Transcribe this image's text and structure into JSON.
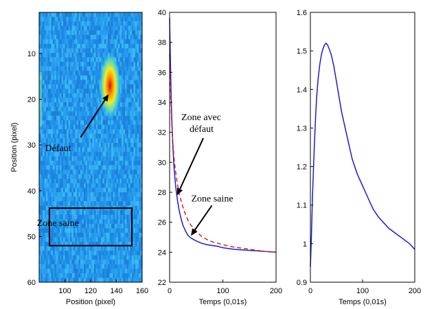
{
  "chart_data": [
    {
      "type": "heatmap",
      "xlabel": "Position  (pixel)",
      "ylabel": "Position  (pixel)",
      "xlim": [
        80,
        160
      ],
      "ylim": [
        60,
        1
      ],
      "x_ticks": [
        "100",
        "120",
        "140",
        "160"
      ],
      "y_ticks": [
        "10",
        "20",
        "30",
        "40",
        "50",
        "60"
      ],
      "colormap": "jet",
      "background_color": "#1f8fe6",
      "hotspot": {
        "x": 135,
        "y": 17
      },
      "annotations": [
        {
          "text": "Défaut",
          "at": {
            "x": 108,
            "y": 31
          },
          "arrow_to": {
            "x": 134,
            "y": 18
          }
        },
        {
          "text": "Zone saine",
          "at": {
            "x": 90,
            "y": 48
          }
        }
      ],
      "box": {
        "x": [
          88,
          152
        ],
        "y": [
          45,
          52
        ]
      }
    },
    {
      "type": "line",
      "xlabel": "Temps  (0,01s)",
      "ylabel": "",
      "xlim": [
        0,
        200
      ],
      "ylim": [
        22,
        40
      ],
      "x_ticks": [
        "0",
        "100",
        "200"
      ],
      "y_ticks": [
        "22",
        "24",
        "26",
        "28",
        "30",
        "32",
        "34",
        "36",
        "38",
        "40"
      ],
      "series": [
        {
          "color": "#1a1ad0",
          "style": "solid",
          "x": [
            0,
            1,
            2,
            3,
            4,
            6,
            8,
            10,
            12,
            15,
            18,
            21,
            25,
            30,
            35,
            40,
            45,
            50,
            60,
            70,
            80,
            90,
            100,
            120,
            140,
            160,
            180,
            200
          ],
          "y": [
            39.6,
            37.6,
            35.8,
            34.3,
            33.0,
            31.1,
            29.8,
            28.9,
            28.2,
            27.4,
            26.8,
            26.3,
            25.8,
            25.4,
            25.1,
            24.95,
            24.85,
            24.75,
            24.6,
            24.5,
            24.45,
            24.4,
            24.3,
            24.2,
            24.15,
            24.1,
            24.05,
            24.0
          ]
        },
        {
          "color": "#d42020",
          "style": "dashed",
          "x": [
            0,
            1,
            2,
            3,
            4,
            6,
            8,
            10,
            12,
            15,
            18,
            21,
            25,
            30,
            35,
            40,
            45,
            50,
            60,
            70,
            80,
            90,
            100,
            120,
            140,
            160,
            180,
            200
          ],
          "y": [
            37.2,
            35.8,
            34.5,
            33.5,
            32.6,
            31.3,
            30.4,
            29.7,
            29.2,
            28.5,
            27.9,
            27.5,
            27.0,
            26.5,
            26.1,
            25.8,
            25.6,
            25.4,
            25.05,
            24.85,
            24.7,
            24.6,
            24.5,
            24.35,
            24.25,
            24.15,
            24.05,
            24.0
          ]
        }
      ],
      "annotations": [
        {
          "text": "Zone avec",
          "line2": "défaut",
          "at": {
            "x": 22,
            "y": 32.8
          },
          "arrow_to": {
            "x": 14,
            "y": 27.8
          }
        },
        {
          "text": "Zone saine",
          "at": {
            "x": 60,
            "y": 27.3
          },
          "arrow_to": {
            "x": 40,
            "y": 25.1
          }
        }
      ]
    },
    {
      "type": "line",
      "xlabel": "Temps  (0,01s)",
      "ylabel": "",
      "xlim": [
        0,
        200
      ],
      "ylim": [
        0.9,
        1.6
      ],
      "x_ticks": [
        "0",
        "100",
        "200"
      ],
      "y_ticks": [
        "0.9",
        "1",
        "1.1",
        "1.2",
        "1.3",
        "1.4",
        "1.5",
        "1.6"
      ],
      "series": [
        {
          "color": "#1a1ad0",
          "style": "solid",
          "x": [
            0,
            2,
            4,
            6,
            8,
            10,
            12,
            15,
            18,
            21,
            24,
            27,
            30,
            33,
            36,
            40,
            45,
            50,
            55,
            60,
            65,
            70,
            75,
            80,
            90,
            100,
            110,
            120,
            130,
            140,
            150,
            160,
            170,
            180,
            190,
            200
          ],
          "y": [
            0.94,
            1.02,
            1.12,
            1.2,
            1.27,
            1.33,
            1.38,
            1.43,
            1.465,
            1.49,
            1.505,
            1.515,
            1.52,
            1.515,
            1.505,
            1.49,
            1.46,
            1.42,
            1.38,
            1.34,
            1.31,
            1.28,
            1.25,
            1.22,
            1.18,
            1.15,
            1.12,
            1.09,
            1.07,
            1.055,
            1.04,
            1.03,
            1.02,
            1.01,
            1.0,
            0.985
          ]
        }
      ]
    }
  ]
}
